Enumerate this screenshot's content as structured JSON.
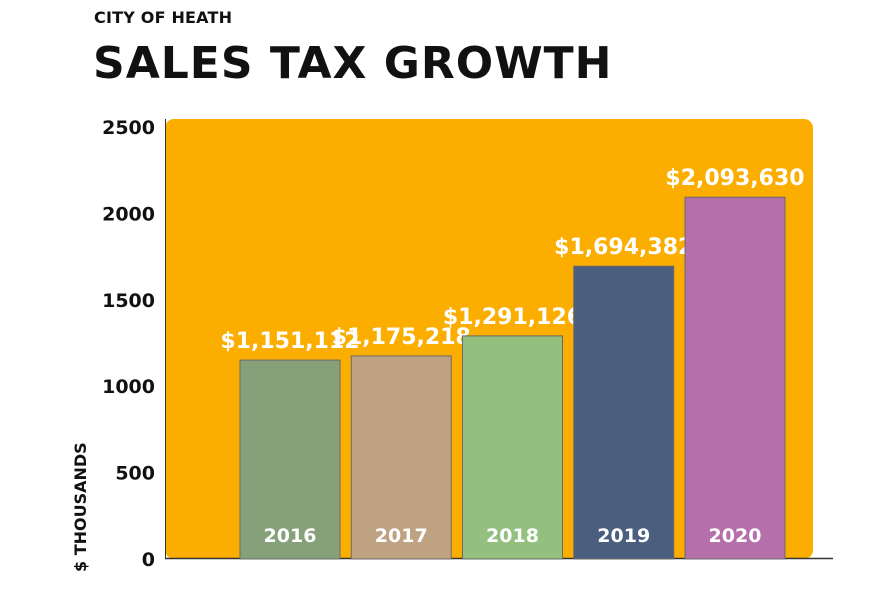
{
  "header": {
    "subtitle": "CITY OF HEATH",
    "title": "SALES TAX GROWTH"
  },
  "colors": {
    "panel": "#FCAE00",
    "bars": [
      "#86A17A",
      "#BFA281",
      "#93C07F",
      "#4A5E80",
      "#B56FAA"
    ]
  },
  "chart_data": {
    "type": "bar",
    "title": "SALES TAX GROWTH",
    "subtitle": "CITY OF HEATH",
    "xlabel": "",
    "ylabel": "$ THOUSANDS",
    "ylim": [
      0,
      2500
    ],
    "yticks": [
      0,
      500,
      1000,
      1500,
      2000,
      2500
    ],
    "categories": [
      "2016",
      "2017",
      "2018",
      "2019",
      "2020"
    ],
    "values": [
      1151.112,
      1175.218,
      1291.126,
      1694.382,
      2093.63
    ],
    "data_labels": [
      "$1,151,112",
      "$1,175,218",
      "$1,291,126",
      "$1,694,382",
      "$2,093,630"
    ]
  }
}
